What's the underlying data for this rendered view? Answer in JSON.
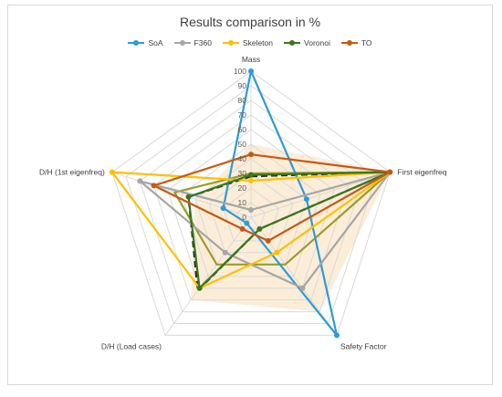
{
  "chart_data": {
    "type": "radar",
    "title": "Results comparison in %",
    "axes": [
      "Mass",
      "First eigenfreq",
      "Safety Factor",
      "D/H (Load cases)",
      "D/H (1st eigenfreq)"
    ],
    "ticks": [
      "0",
      "10",
      "20",
      "30",
      "40",
      "50",
      "60",
      "70",
      "80",
      "90",
      "100"
    ],
    "rlim": [
      0,
      100
    ],
    "grid": true,
    "legend": "top",
    "series": [
      {
        "name": "SoA",
        "color": "#2e9bd6",
        "values": [
          100,
          40,
          100,
          5,
          20
        ]
      },
      {
        "name": "F360",
        "color": "#a6a6a6",
        "values": [
          5,
          100,
          60,
          30,
          80
        ]
      },
      {
        "name": "Skeleton",
        "color": "#ffc000",
        "values": [
          25,
          100,
          30,
          60,
          100
        ]
      },
      {
        "name": "Voronoi",
        "color": "#38761d",
        "values": [
          29,
          100,
          10,
          60,
          45
        ]
      },
      {
        "name": "TO",
        "color": "#c55a11",
        "values": [
          43,
          100,
          20,
          10,
          70
        ]
      }
    ],
    "extra_lines": [
      {
        "color": "#9c9c2a",
        "dashed": false,
        "values": [
          30,
          100,
          40,
          40,
          55
        ]
      },
      {
        "color": "#232323",
        "dashed": true,
        "values": [
          28,
          100,
          10,
          62,
          45
        ]
      }
    ],
    "shaded_region": {
      "color": "#fbe5c8",
      "values": [
        50,
        100,
        80,
        70,
        40
      ]
    }
  }
}
